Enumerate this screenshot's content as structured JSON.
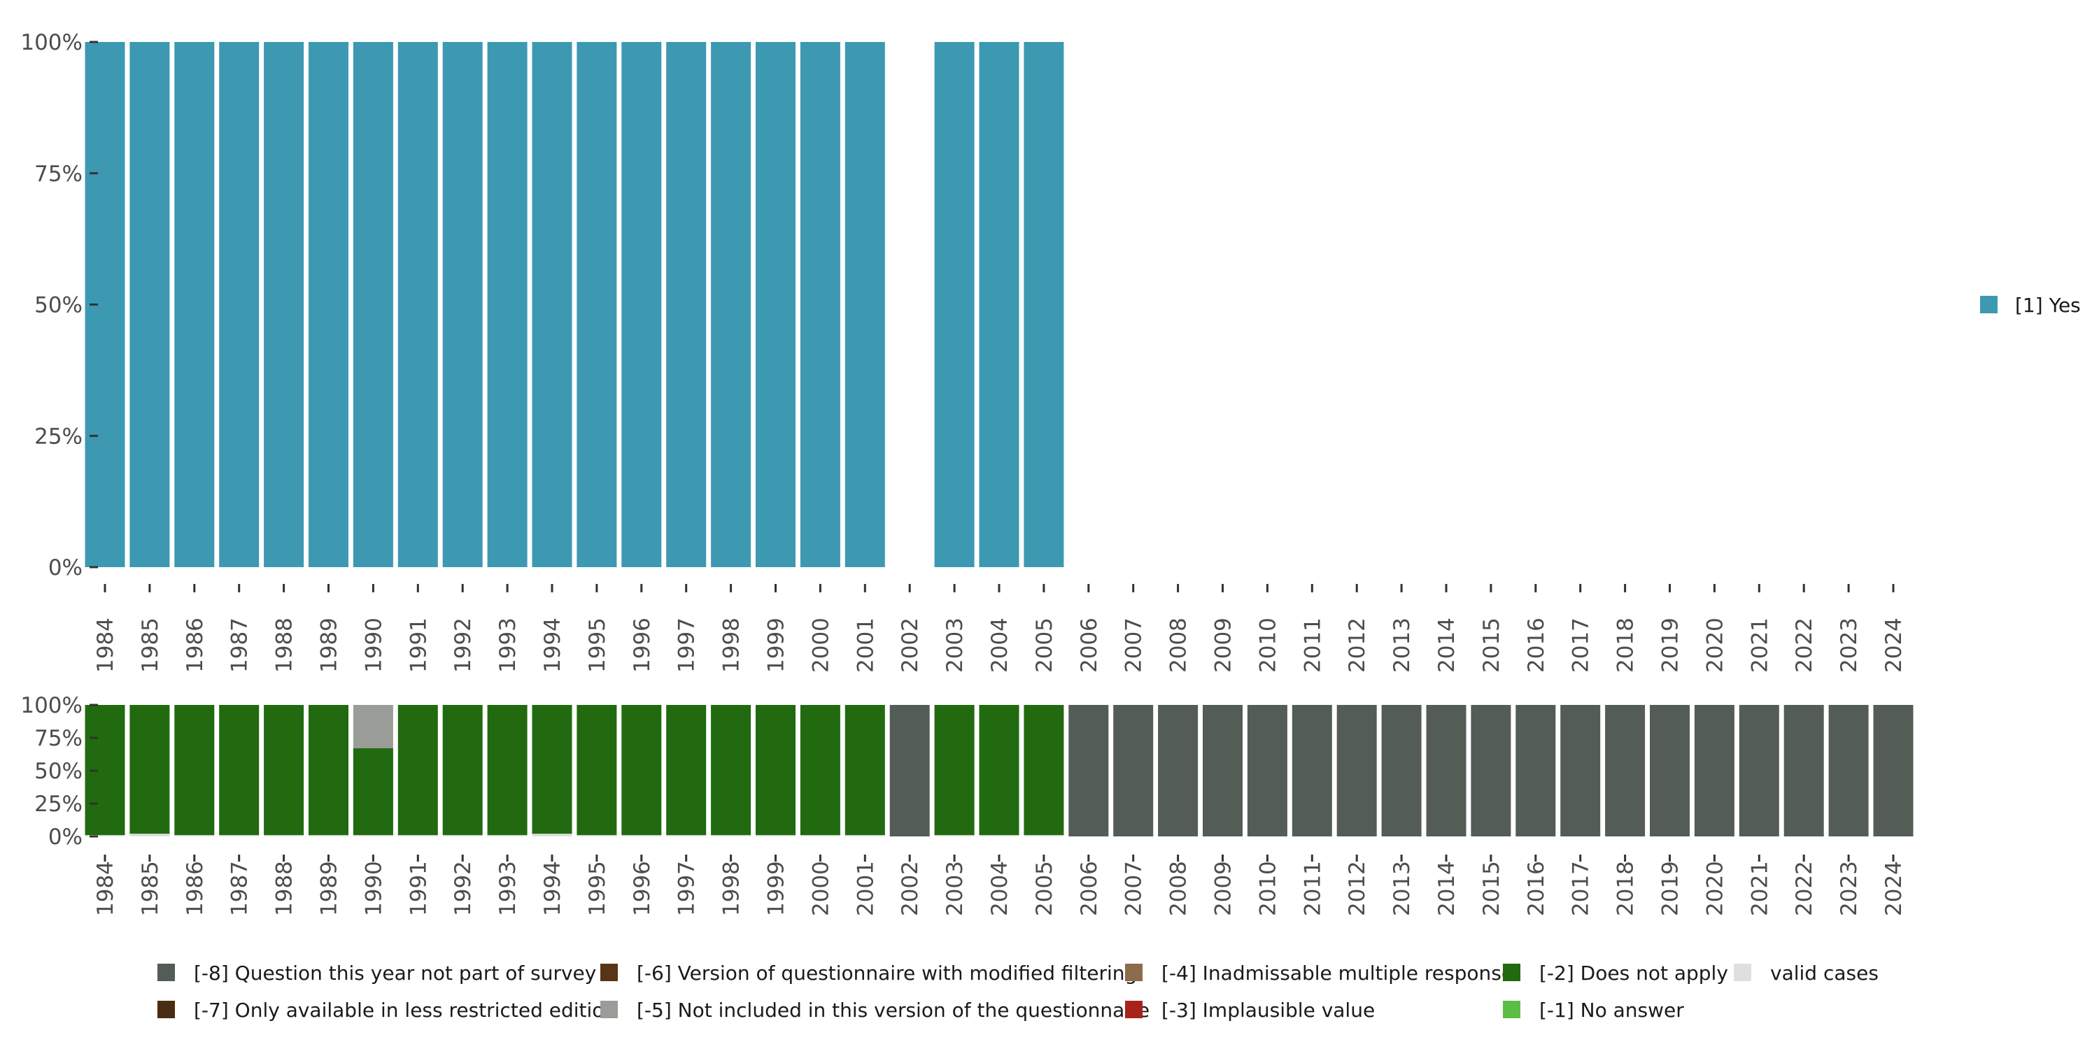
{
  "chart_data": [
    {
      "type": "bar",
      "stacked": true,
      "panel": "valid responses",
      "x": [
        "1984",
        "1985",
        "1986",
        "1987",
        "1988",
        "1989",
        "1990",
        "1991",
        "1992",
        "1993",
        "1994",
        "1995",
        "1996",
        "1997",
        "1998",
        "1999",
        "2000",
        "2001",
        "2002",
        "2003",
        "2004",
        "2005",
        "2006",
        "2007",
        "2008",
        "2009",
        "2010",
        "2011",
        "2012",
        "2013",
        "2014",
        "2015",
        "2016",
        "2017",
        "2018",
        "2019",
        "2020",
        "2021",
        "2022",
        "2023",
        "2024"
      ],
      "ylim": [
        0,
        100
      ],
      "yticks": [
        "0%",
        "25%",
        "50%",
        "75%",
        "100%"
      ],
      "series": [
        {
          "name": "[1] Yes",
          "color": "#3c99b1",
          "values": [
            100,
            100,
            100,
            100,
            100,
            100,
            100,
            100,
            100,
            100,
            100,
            100,
            100,
            100,
            100,
            100,
            100,
            100,
            null,
            100,
            100,
            100,
            null,
            null,
            null,
            null,
            null,
            null,
            null,
            null,
            null,
            null,
            null,
            null,
            null,
            null,
            null,
            null,
            null,
            null,
            null
          ]
        }
      ],
      "legend": [
        {
          "label": "[1] Yes",
          "color": "#3c99b1"
        }
      ],
      "legend_position": "right"
    },
    {
      "type": "bar",
      "stacked": true,
      "panel": "missing codes",
      "x": [
        "1984",
        "1985",
        "1986",
        "1987",
        "1988",
        "1989",
        "1990",
        "1991",
        "1992",
        "1993",
        "1994",
        "1995",
        "1996",
        "1997",
        "1998",
        "1999",
        "2000",
        "2001",
        "2002",
        "2003",
        "2004",
        "2005",
        "2006",
        "2007",
        "2008",
        "2009",
        "2010",
        "2011",
        "2012",
        "2013",
        "2014",
        "2015",
        "2016",
        "2017",
        "2018",
        "2019",
        "2020",
        "2021",
        "2022",
        "2023",
        "2024"
      ],
      "ylim": [
        0,
        100
      ],
      "yticks": [
        "0%",
        "25%",
        "50%",
        "75%",
        "100%"
      ],
      "series": [
        {
          "name": "valid cases",
          "color": "#dde0dd",
          "values": [
            1,
            2,
            1,
            1,
            1,
            1,
            1,
            1,
            1,
            1,
            2,
            1,
            1,
            1,
            1,
            1,
            1,
            1,
            0,
            1,
            1,
            1,
            0,
            0,
            0,
            0,
            0,
            0,
            0,
            0,
            0,
            0,
            0,
            0,
            0,
            0,
            0,
            0,
            0,
            0,
            0
          ]
        },
        {
          "name": "[-2] Does not apply",
          "color": "#216a0f",
          "values": [
            99,
            98,
            99,
            99,
            99,
            99,
            66,
            99,
            99,
            99,
            98,
            99,
            99,
            99,
            99,
            99,
            99,
            99,
            0,
            99,
            99,
            99,
            0,
            0,
            0,
            0,
            0,
            0,
            0,
            0,
            0,
            0,
            0,
            0,
            0,
            0,
            0,
            0,
            0,
            0,
            0
          ]
        },
        {
          "name": "[-5] Not included in this version of the questionnaire",
          "color": "#9a9c98",
          "values": [
            0,
            0,
            0,
            0,
            0,
            0,
            33,
            0,
            0,
            0,
            0,
            0,
            0,
            0,
            0,
            0,
            0,
            0,
            0,
            0,
            0,
            0,
            0,
            0,
            0,
            0,
            0,
            0,
            0,
            0,
            0,
            0,
            0,
            0,
            0,
            0,
            0,
            0,
            0,
            0,
            0
          ]
        },
        {
          "name": "[-8] Question this year not part of survey",
          "color": "#545c56",
          "values": [
            0,
            0,
            0,
            0,
            0,
            0,
            0,
            0,
            0,
            0,
            0,
            0,
            0,
            0,
            0,
            0,
            0,
            0,
            100,
            0,
            0,
            0,
            100,
            100,
            100,
            100,
            100,
            100,
            100,
            100,
            100,
            100,
            100,
            100,
            100,
            100,
            100,
            100,
            100,
            100,
            100
          ]
        }
      ],
      "legend": [
        {
          "label": "[-8] Question this year not part of survey",
          "color": "#545c56"
        },
        {
          "label": "[-7] Only available in less restricted edition",
          "color": "#4a2c13"
        },
        {
          "label": "[-6] Version of questionnaire with modified filtering",
          "color": "#5a3416"
        },
        {
          "label": "[-5] Not included in this version of the questionnaire",
          "color": "#9a9c98"
        },
        {
          "label": "[-4] Inadmissable multiple response",
          "color": "#8c6c4c"
        },
        {
          "label": "[-3] Implausible value",
          "color": "#a8221c"
        },
        {
          "label": "[-2] Does not apply",
          "color": "#216a0f"
        },
        {
          "label": "[-1] No answer",
          "color": "#5cbd44"
        },
        {
          "label": "valid cases",
          "color": "#dde0dd"
        }
      ],
      "legend_position": "bottom"
    }
  ]
}
